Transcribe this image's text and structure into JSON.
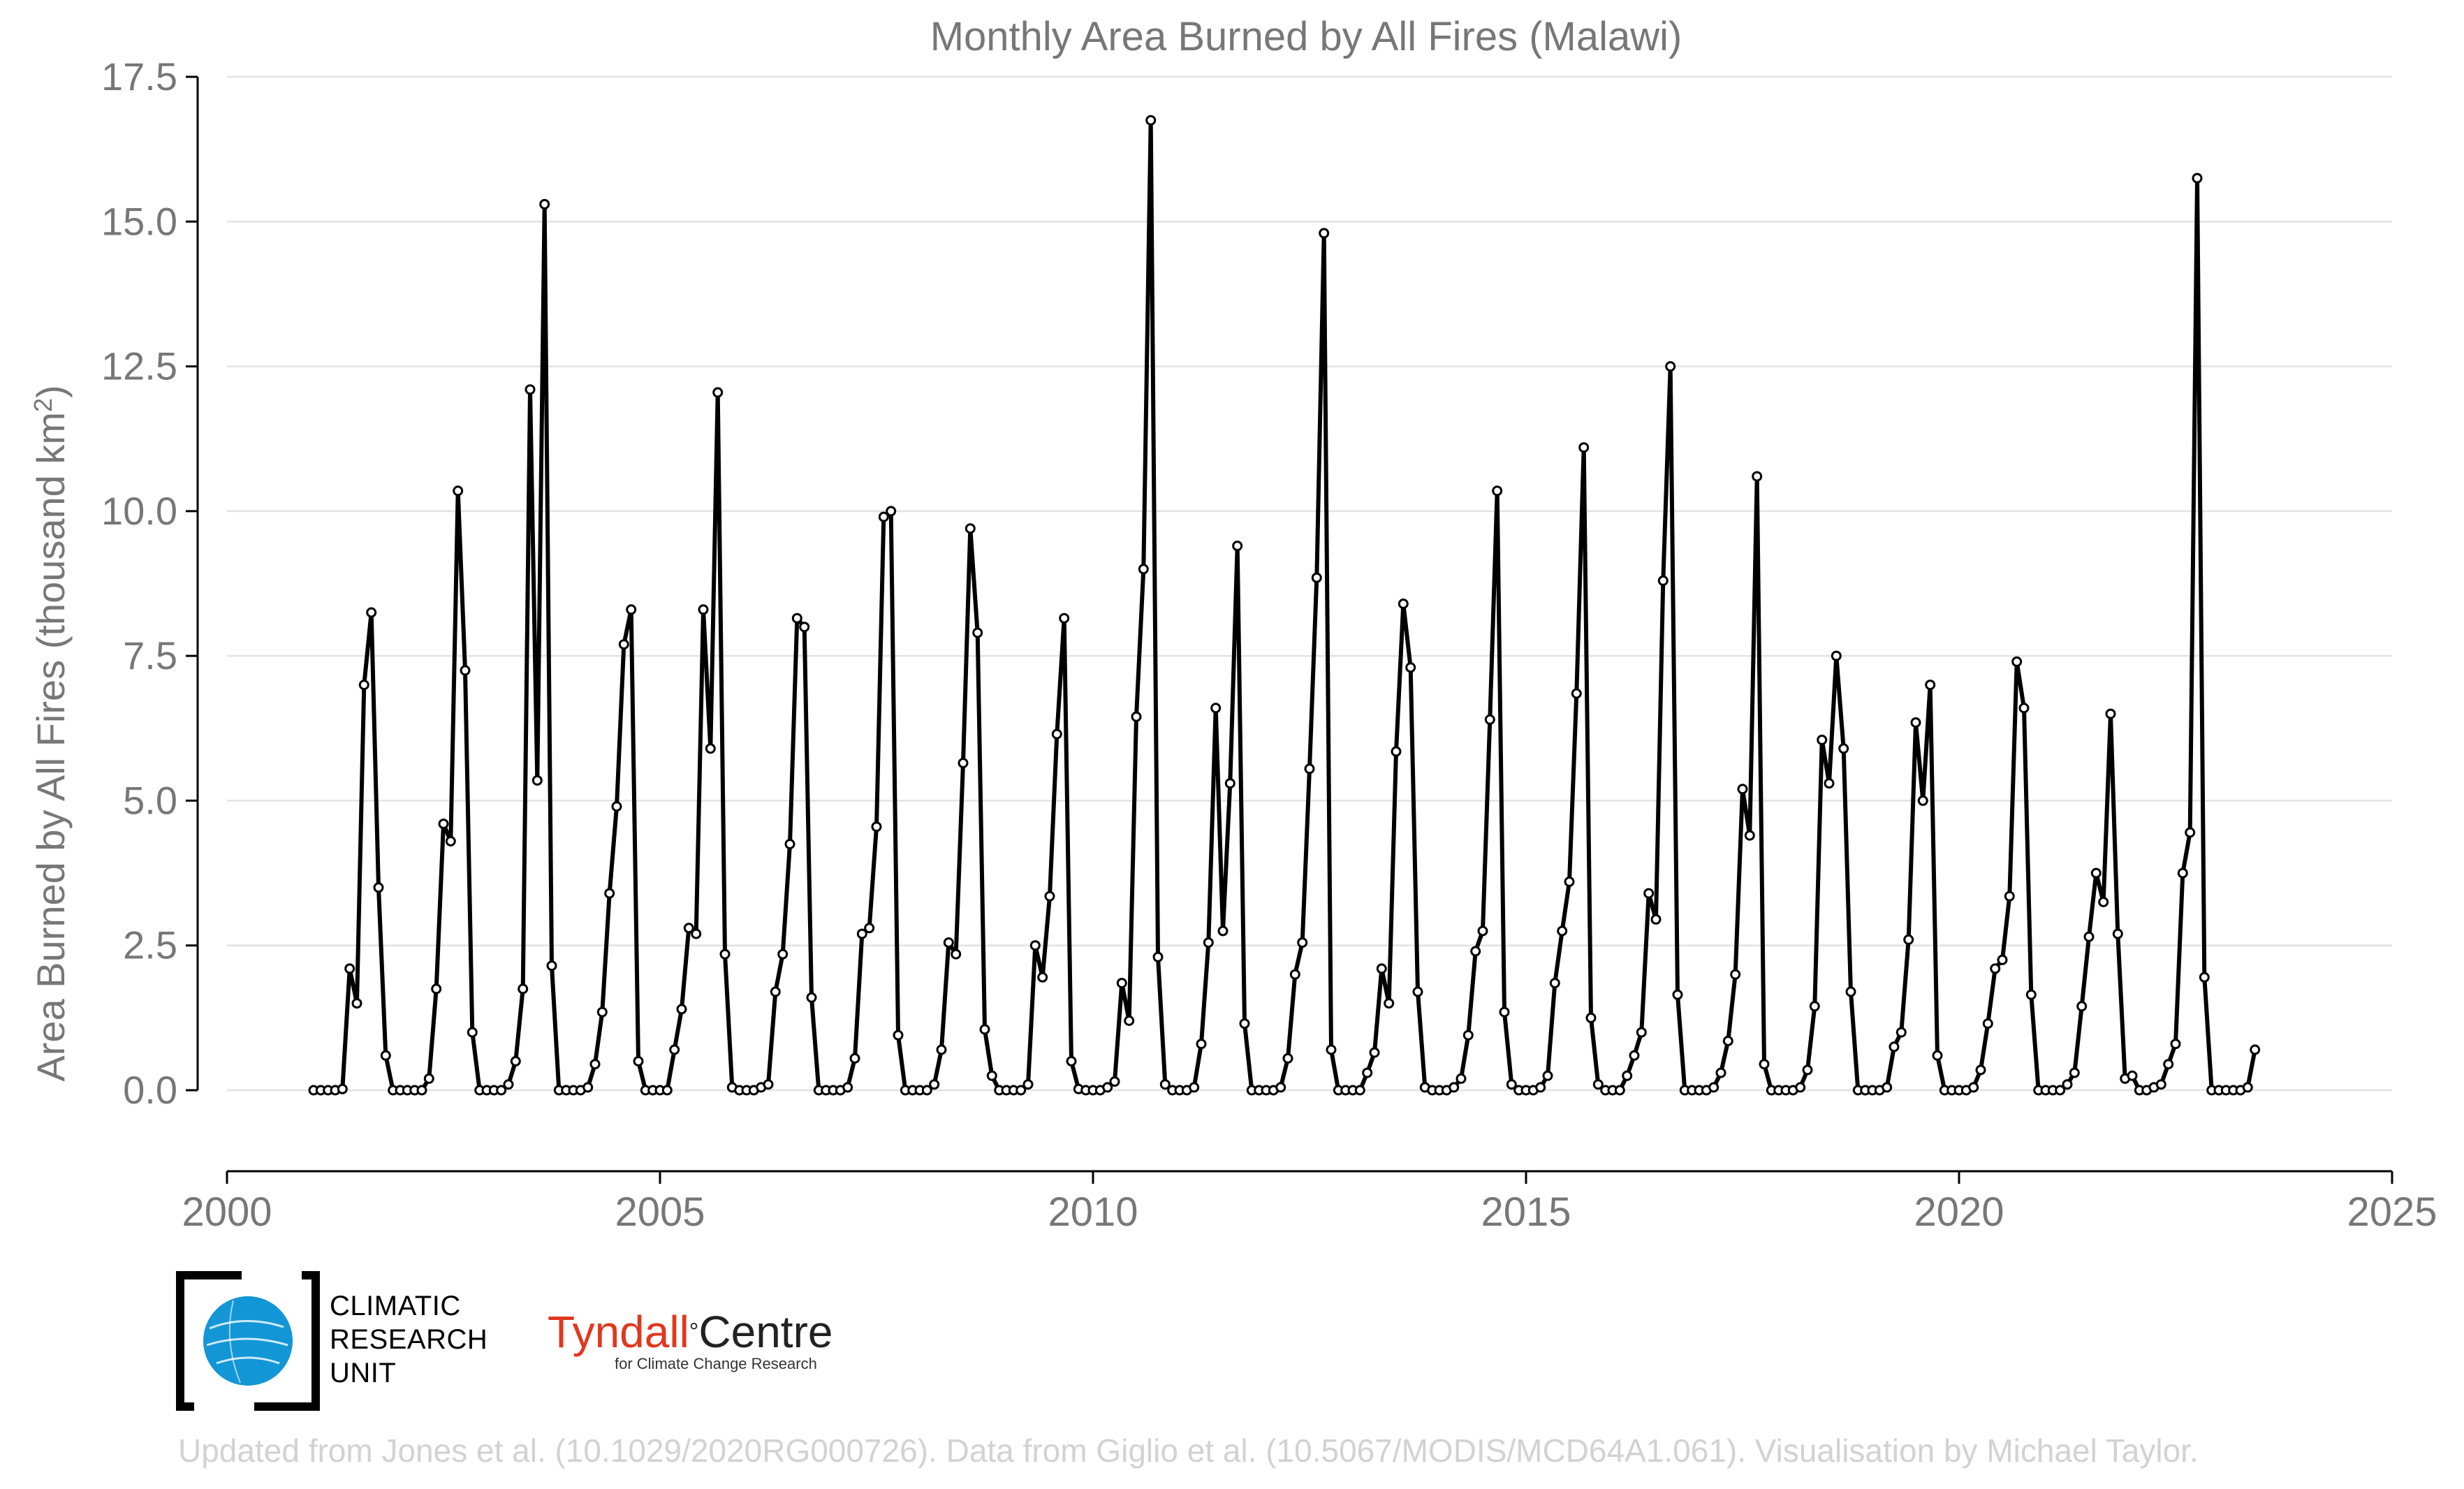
{
  "chart_data": {
    "type": "line",
    "title": "Monthly Area Burned by All Fires (Malawi)",
    "ylabel": "Area Burned by All Fires (thousand km",
    "ylabel_sup": "2",
    "ylabel_tail": ")",
    "xlabel": "",
    "xlim": [
      2000,
      2025
    ],
    "ylim": [
      -1.2,
      17.5
    ],
    "y_ticks": [
      "0.0",
      "2.5",
      "5.0",
      "7.5",
      "10.0",
      "12.5",
      "15.0",
      "17.5"
    ],
    "x_ticks": [
      "2000",
      "2005",
      "2010",
      "2015",
      "2020",
      "2025"
    ],
    "grid": "horizontal",
    "series": [
      {
        "name": "Malawi monthly area burned",
        "start_year": 2001,
        "start_month": 1,
        "values": [
          0,
          0,
          0,
          0,
          0.02,
          2.1,
          1.5,
          7.0,
          8.25,
          3.5,
          0.6,
          0,
          0,
          0,
          0,
          0,
          0.2,
          1.75,
          4.6,
          4.3,
          10.35,
          7.25,
          1.0,
          0,
          0,
          0,
          0,
          0.1,
          0.5,
          1.75,
          12.1,
          5.35,
          15.3,
          2.15,
          0,
          0,
          0,
          0,
          0.05,
          0.45,
          1.35,
          3.4,
          4.9,
          7.7,
          8.3,
          0.5,
          0,
          0,
          0,
          0,
          0.7,
          1.4,
          2.8,
          2.7,
          8.3,
          5.9,
          12.05,
          2.35,
          0.05,
          0,
          0,
          0,
          0.05,
          0.1,
          1.7,
          2.35,
          4.25,
          8.15,
          8.0,
          1.6,
          0,
          0,
          0,
          0,
          0.05,
          0.55,
          2.7,
          2.8,
          4.55,
          9.9,
          10.0,
          0.95,
          0,
          0,
          0,
          0,
          0.1,
          0.7,
          2.55,
          2.35,
          5.65,
          9.7,
          7.9,
          1.05,
          0.25,
          0,
          0,
          0,
          0,
          0.1,
          2.5,
          1.95,
          3.35,
          6.15,
          8.15,
          0.5,
          0.02,
          0,
          0,
          0,
          0.05,
          0.15,
          1.85,
          1.2,
          6.45,
          9.0,
          16.75,
          2.3,
          0.1,
          0,
          0,
          0,
          0.05,
          0.8,
          2.55,
          6.6,
          2.75,
          5.3,
          9.4,
          1.15,
          0,
          0,
          0,
          0,
          0.05,
          0.55,
          2.0,
          2.55,
          5.55,
          8.85,
          14.8,
          0.7,
          0,
          0,
          0,
          0,
          0.3,
          0.65,
          2.1,
          1.5,
          5.85,
          8.4,
          7.3,
          1.7,
          0.05,
          0,
          0,
          0,
          0.05,
          0.2,
          0.95,
          2.4,
          2.75,
          6.4,
          10.35,
          1.35,
          0.1,
          0,
          0,
          0,
          0.05,
          0.25,
          1.85,
          2.75,
          3.6,
          6.85,
          11.1,
          1.25,
          0.1,
          0,
          0,
          0,
          0.25,
          0.6,
          1.0,
          3.4,
          2.95,
          8.8,
          12.5,
          1.65,
          0,
          0,
          0,
          0,
          0.05,
          0.3,
          0.85,
          2.0,
          5.2,
          4.4,
          10.6,
          0.45,
          0,
          0,
          0,
          0,
          0.05,
          0.35,
          1.45,
          6.05,
          5.3,
          7.5,
          5.9,
          1.7,
          0,
          0,
          0,
          0,
          0.05,
          0.75,
          1.0,
          2.6,
          6.35,
          5.0,
          7.0,
          0.6,
          0,
          0,
          0,
          0,
          0.05,
          0.35,
          1.15,
          2.1,
          2.25,
          3.35,
          7.4,
          6.6,
          1.65,
          0,
          0,
          0,
          0,
          0.1,
          0.3,
          1.45,
          2.65,
          3.75,
          3.25,
          6.5,
          2.7,
          0.2,
          0.25,
          0,
          0,
          0.05,
          0.1,
          0.45,
          0.8,
          3.75,
          4.45,
          15.75,
          1.95,
          0,
          0,
          0,
          0,
          0,
          0.05,
          0.7
        ]
      }
    ]
  },
  "logos": {
    "cru_lines": [
      "CLIMATIC",
      "RESEARCH",
      "UNIT"
    ],
    "tyndall_main_red": "Tyndall",
    "tyndall_degree": "°",
    "tyndall_main_dark": "Centre",
    "tyndall_sub": "for Climate Change Research"
  },
  "credit": "Updated from Jones et al. (10.1029/2020RG000726). Data from Giglio et al. (10.5067/MODIS/MCD64A1.061). Visualisation by Michael Taylor.",
  "colors": {
    "line": "#000000",
    "marker_fill": "#ffffff",
    "grid": "#e2e2e2",
    "axis": "#000000",
    "tick_text": "#777777",
    "title_text": "#777777",
    "cru_blue": "#1396d6",
    "tyndall_red": "#e2371e",
    "credit_text": "#d2d2d2"
  }
}
